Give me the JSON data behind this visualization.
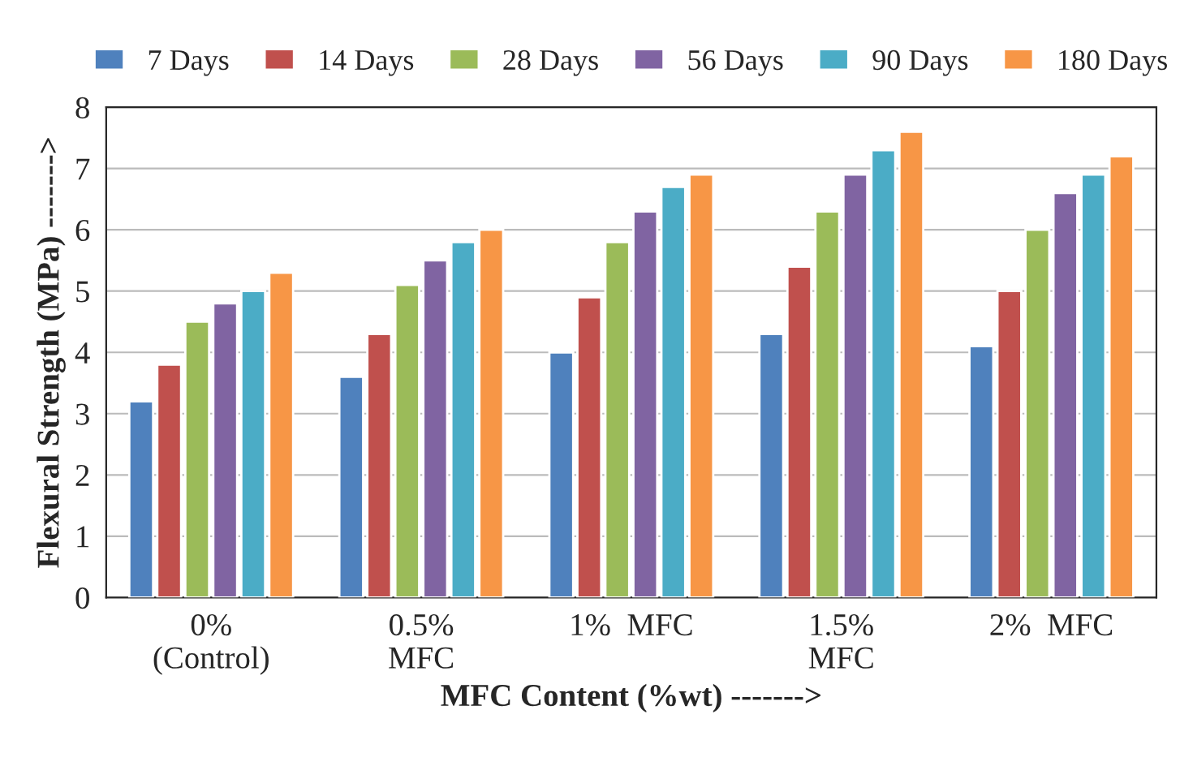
{
  "chart_data": {
    "type": "bar",
    "xlabel": "MFC Content (%wt) ------->",
    "ylabel": "Flexural Strength (MPa) ------->",
    "categories": [
      "0%\n(Control)",
      "0.5%\nMFC",
      "1%  MFC",
      "1.5%\nMFC",
      "2%  MFC"
    ],
    "series": [
      {
        "name": "7 Days",
        "color": "#4f81bd",
        "values": [
          3.2,
          3.6,
          4.0,
          4.3,
          4.1
        ]
      },
      {
        "name": "14 Days",
        "color": "#c0504d",
        "values": [
          3.8,
          4.3,
          4.9,
          5.4,
          5.0
        ]
      },
      {
        "name": "28 Days",
        "color": "#9bbb59",
        "values": [
          4.5,
          5.1,
          5.8,
          6.3,
          6.0
        ]
      },
      {
        "name": "56 Days",
        "color": "#8064a2",
        "values": [
          4.8,
          5.5,
          6.3,
          6.9,
          6.6
        ]
      },
      {
        "name": "90 Days",
        "color": "#4bacc6",
        "values": [
          5.0,
          5.8,
          6.7,
          7.3,
          6.9
        ]
      },
      {
        "name": "180 Days",
        "color": "#f79646",
        "values": [
          5.3,
          6.0,
          6.9,
          7.6,
          7.2
        ]
      }
    ],
    "ylim": [
      0,
      8
    ],
    "yticks": [
      0,
      1,
      2,
      3,
      4,
      5,
      6,
      7,
      8
    ],
    "grid": "y",
    "legend": "top"
  }
}
